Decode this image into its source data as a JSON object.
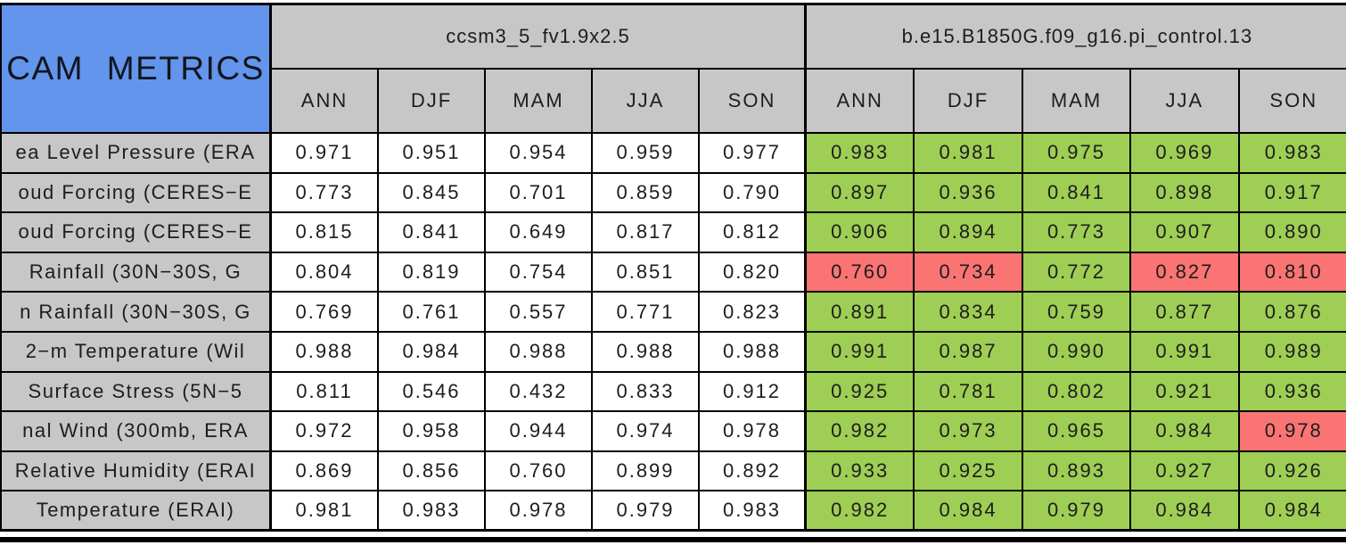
{
  "chart_data": {
    "type": "table",
    "title": "CAM METRICS",
    "column_groups": [
      {
        "name": "ccsm3_5_fv1.9x2.5",
        "seasons": [
          "ANN",
          "DJF",
          "MAM",
          "JJA",
          "SON"
        ]
      },
      {
        "name": "b.e15.B1850G.f09_g16.pi_control.13",
        "seasons": [
          "ANN",
          "DJF",
          "MAM",
          "JJA",
          "SON"
        ]
      }
    ],
    "colors": {
      "blue": "#6495ec",
      "gray": "#c7c7c7",
      "green": "#9fce55",
      "red": "#fb7474",
      "line": "#000000"
    },
    "highlight_meaning": {
      "green": "#9fce55",
      "red": "#fb7474"
    },
    "rows": [
      {
        "label": "ea Level Pressure (ERA",
        "m1": [
          "0.971",
          "0.951",
          "0.954",
          "0.959",
          "0.977"
        ],
        "m2": [
          "0.983",
          "0.981",
          "0.975",
          "0.969",
          "0.983"
        ],
        "m2_status": [
          "better",
          "better",
          "better",
          "better",
          "better"
        ]
      },
      {
        "label": "oud Forcing (CERES−E",
        "m1": [
          "0.773",
          "0.845",
          "0.701",
          "0.859",
          "0.790"
        ],
        "m2": [
          "0.897",
          "0.936",
          "0.841",
          "0.898",
          "0.917"
        ],
        "m2_status": [
          "better",
          "better",
          "better",
          "better",
          "better"
        ]
      },
      {
        "label": "oud Forcing (CERES−E",
        "m1": [
          "0.815",
          "0.841",
          "0.649",
          "0.817",
          "0.812"
        ],
        "m2": [
          "0.906",
          "0.894",
          "0.773",
          "0.907",
          "0.890"
        ],
        "m2_status": [
          "better",
          "better",
          "better",
          "better",
          "better"
        ]
      },
      {
        "label": "Rainfall (30N−30S, G",
        "m1": [
          "0.804",
          "0.819",
          "0.754",
          "0.851",
          "0.820"
        ],
        "m2": [
          "0.760",
          "0.734",
          "0.772",
          "0.827",
          "0.810"
        ],
        "m2_status": [
          "worse",
          "worse",
          "better",
          "worse",
          "worse"
        ]
      },
      {
        "label": "n Rainfall (30N−30S, G",
        "m1": [
          "0.769",
          "0.761",
          "0.557",
          "0.771",
          "0.823"
        ],
        "m2": [
          "0.891",
          "0.834",
          "0.759",
          "0.877",
          "0.876"
        ],
        "m2_status": [
          "better",
          "better",
          "better",
          "better",
          "better"
        ]
      },
      {
        "label": "2−m Temperature (Wil",
        "m1": [
          "0.988",
          "0.984",
          "0.988",
          "0.988",
          "0.988"
        ],
        "m2": [
          "0.991",
          "0.987",
          "0.990",
          "0.991",
          "0.989"
        ],
        "m2_status": [
          "better",
          "better",
          "better",
          "better",
          "better"
        ]
      },
      {
        "label": "Surface Stress (5N−5",
        "m1": [
          "0.811",
          "0.546",
          "0.432",
          "0.833",
          "0.912"
        ],
        "m2": [
          "0.925",
          "0.781",
          "0.802",
          "0.921",
          "0.936"
        ],
        "m2_status": [
          "better",
          "better",
          "better",
          "better",
          "better"
        ]
      },
      {
        "label": "nal Wind (300mb, ERA",
        "m1": [
          "0.972",
          "0.958",
          "0.944",
          "0.974",
          "0.978"
        ],
        "m2": [
          "0.982",
          "0.973",
          "0.965",
          "0.984",
          "0.978"
        ],
        "m2_status": [
          "better",
          "better",
          "better",
          "better",
          "worse"
        ]
      },
      {
        "label": "Relative Humidity (ERAI",
        "m1": [
          "0.869",
          "0.856",
          "0.760",
          "0.899",
          "0.892"
        ],
        "m2": [
          "0.933",
          "0.925",
          "0.893",
          "0.927",
          "0.926"
        ],
        "m2_status": [
          "better",
          "better",
          "better",
          "better",
          "better"
        ]
      },
      {
        "label": "Temperature (ERAI)",
        "m1": [
          "0.981",
          "0.983",
          "0.978",
          "0.979",
          "0.983"
        ],
        "m2": [
          "0.982",
          "0.984",
          "0.979",
          "0.984",
          "0.984"
        ],
        "m2_status": [
          "better",
          "better",
          "better",
          "better",
          "better"
        ]
      }
    ]
  }
}
